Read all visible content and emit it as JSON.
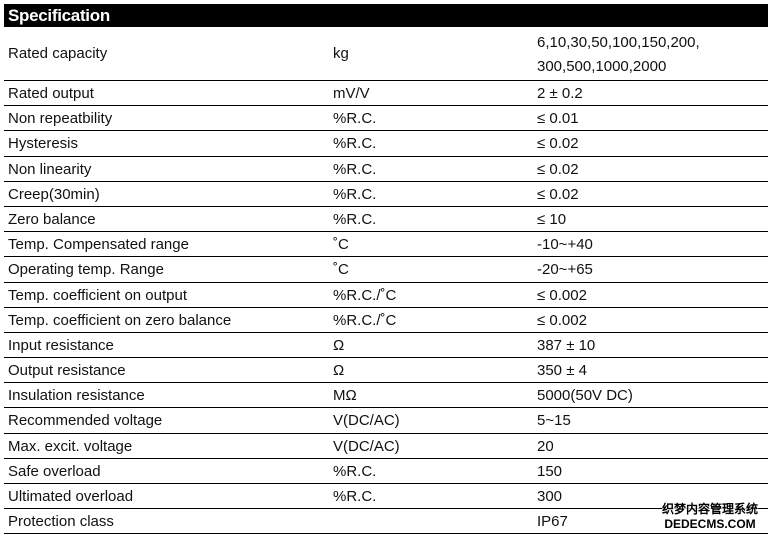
{
  "title": "Specification",
  "rows": [
    {
      "param": "Rated capacity",
      "unit": "kg",
      "value": "6,10,30,50,100,150,200,\n300,500,1000,2000"
    },
    {
      "param": "Rated output",
      "unit": "mV/V",
      "value": "2 ± 0.2"
    },
    {
      "param": "Non repeatbility",
      "unit": "%R.C.",
      "value": "≤ 0.01"
    },
    {
      "param": "Hysteresis",
      "unit": "%R.C.",
      "value": "≤ 0.02"
    },
    {
      "param": "Non linearity",
      "unit": "%R.C.",
      "value": "≤ 0.02"
    },
    {
      "param": "Creep(30min)",
      "unit": "%R.C.",
      "value": "≤ 0.02"
    },
    {
      "param": "Zero balance",
      "unit": "%R.C.",
      "value": "≤ 10"
    },
    {
      "param": "Temp. Compensated range",
      "unit": "˚C",
      "value": "-10~+40"
    },
    {
      "param": "Operating temp. Range",
      "unit": "˚C",
      "value": "-20~+65"
    },
    {
      "param": "Temp. coefficient on output",
      "unit": "%R.C./˚C",
      "value": "≤ 0.002"
    },
    {
      "param": "Temp. coefficient on zero balance",
      "unit": "%R.C./˚C",
      "value": "≤ 0.002"
    },
    {
      "param": "Input resistance",
      "unit": "Ω",
      "value": "387 ± 10"
    },
    {
      "param": "Output resistance",
      "unit": "Ω",
      "value": "350 ± 4"
    },
    {
      "param": "Insulation resistance",
      "unit": "MΩ",
      "value": "5000(50V DC)"
    },
    {
      "param": "Recommended voltage",
      "unit": "V(DC/AC)",
      "value": "5~15"
    },
    {
      "param": "Max. excit. voltage",
      "unit": "V(DC/AC)",
      "value": "20"
    },
    {
      "param": "Safe overload",
      "unit": "%R.C.",
      "value": "150"
    },
    {
      "param": "Ultimated overload",
      "unit": "%R.C.",
      "value": "300"
    },
    {
      "param": "Protection class",
      "unit": "",
      "value": "IP67"
    }
  ],
  "watermark": {
    "line1": "织梦内容管理系统",
    "line2": "DEDECMS.COM"
  }
}
